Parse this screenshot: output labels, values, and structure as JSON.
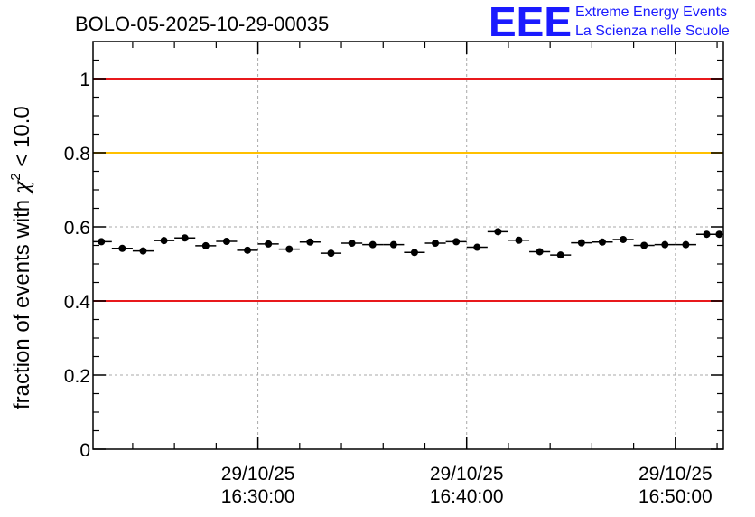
{
  "chart_data": {
    "type": "scatter",
    "title": "BOLO-05-2025-10-29-00035",
    "ylabel": {
      "prefix": "fraction of events with ",
      "symbol": "χ",
      "superscript": "2",
      "suffix": " < 10.0"
    },
    "xlabel": "",
    "ylim": [
      0,
      1.1
    ],
    "yticks": [
      0,
      0.2,
      0.4,
      0.6,
      0.8,
      1
    ],
    "ytick_labels": [
      "0",
      "0.2",
      "0.4",
      "0.6",
      "0.8",
      "1"
    ],
    "xlim_minutes": [
      -7.9,
      22.3
    ],
    "xticks": [
      {
        "minute": 0,
        "date": "29/10/25",
        "time": "16:30:00"
      },
      {
        "minute": 10,
        "date": "29/10/25",
        "time": "16:40:00"
      },
      {
        "minute": 20,
        "date": "29/10/25",
        "time": "16:50:00"
      }
    ],
    "x_reference_time": "16:30:00",
    "bin_width_minutes": 1.0,
    "grid": true,
    "reference_lines": [
      {
        "y": 1.0,
        "color": "#e8191c"
      },
      {
        "y": 0.8,
        "color": "#ffc000"
      },
      {
        "y": 0.4,
        "color": "#e8191c"
      }
    ],
    "series": [
      {
        "name": "fraction",
        "x": [
          -7.5,
          -6.5,
          -5.5,
          -4.5,
          -3.5,
          -2.5,
          -1.5,
          -0.5,
          0.5,
          1.5,
          2.5,
          3.5,
          4.5,
          5.5,
          6.5,
          7.5,
          8.5,
          9.5,
          10.5,
          11.5,
          12.5,
          13.5,
          14.5,
          15.5,
          16.5,
          17.5,
          18.5,
          19.5,
          20.5,
          21.5,
          22.1
        ],
        "y": [
          0.56,
          0.542,
          0.535,
          0.563,
          0.57,
          0.549,
          0.561,
          0.537,
          0.554,
          0.54,
          0.559,
          0.529,
          0.556,
          0.552,
          0.552,
          0.531,
          0.556,
          0.56,
          0.545,
          0.587,
          0.564,
          0.533,
          0.524,
          0.557,
          0.559,
          0.566,
          0.55,
          0.552,
          0.552,
          0.58,
          0.58
        ]
      }
    ]
  },
  "logo": {
    "mark": "EEE",
    "line1": "Extreme Energy Events",
    "line2": "La Scienza nelle Scuole",
    "color": "#1a1aff"
  }
}
